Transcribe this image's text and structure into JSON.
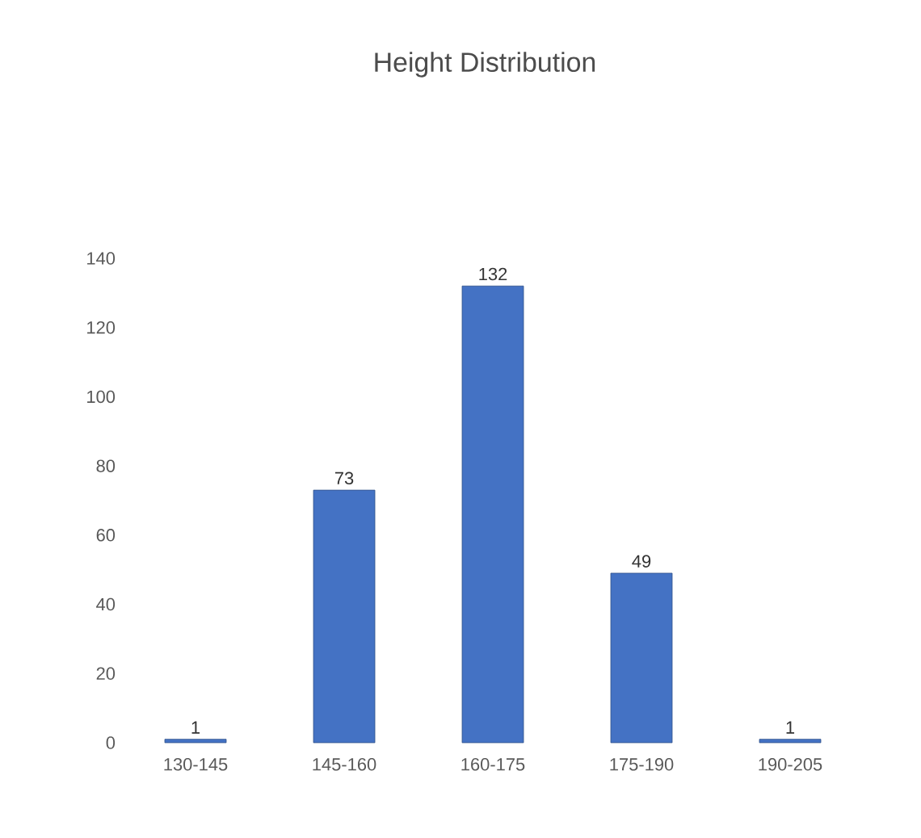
{
  "chart_data": {
    "type": "bar",
    "title": "Height Distribution",
    "categories": [
      "130-145",
      "145-160",
      "160-175",
      "175-190",
      "190-205"
    ],
    "values": [
      1,
      73,
      132,
      49,
      1
    ],
    "color": "#4472c4",
    "ylim": [
      0,
      140
    ],
    "yticks": [
      0,
      20,
      40,
      60,
      80,
      100,
      120,
      140
    ],
    "data_labels": true,
    "grid": false
  }
}
